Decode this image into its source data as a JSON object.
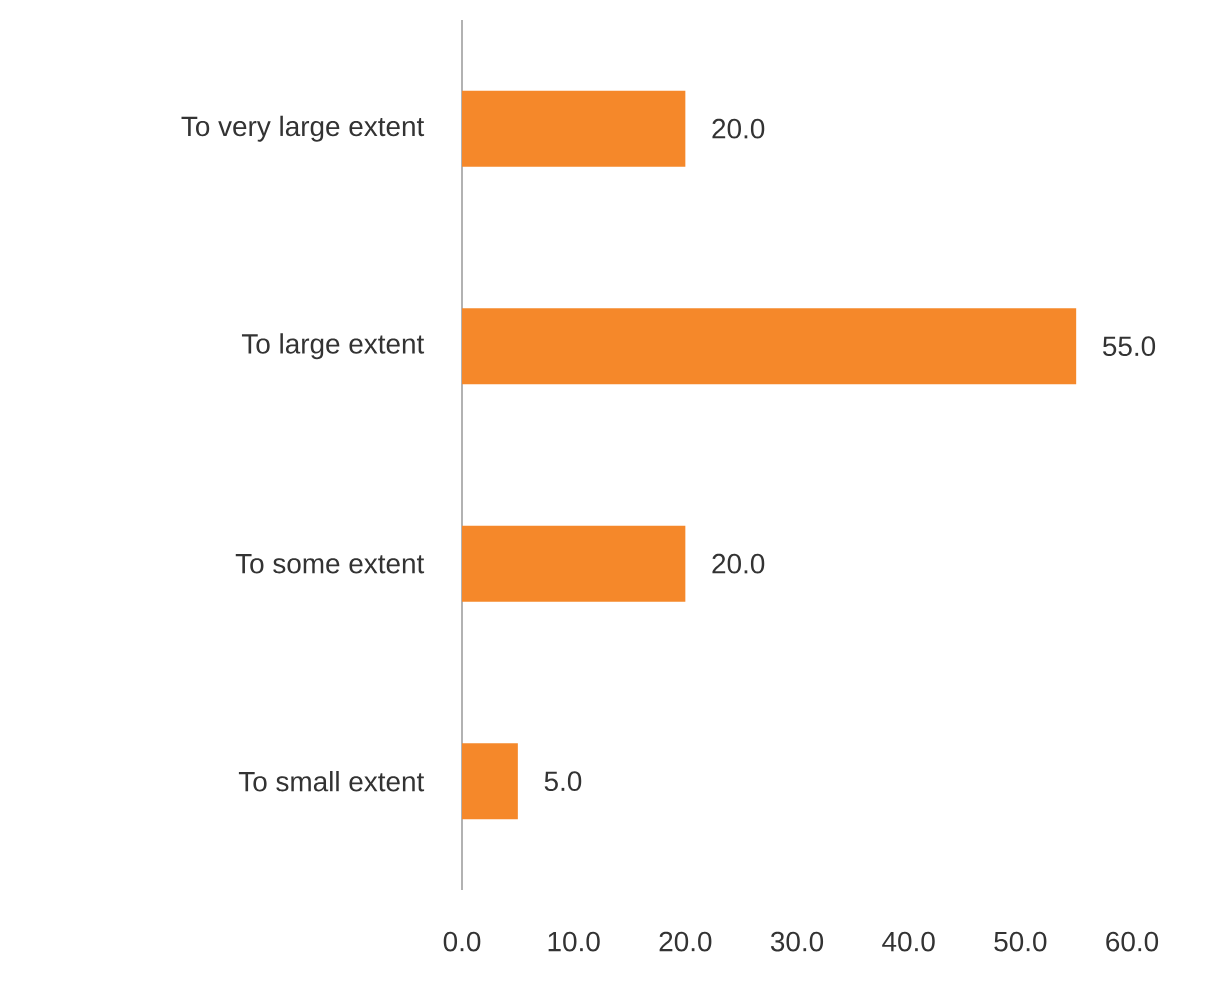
{
  "chart_data": {
    "type": "bar",
    "orientation": "horizontal",
    "categories": [
      "To very large extent",
      "To large extent",
      "To some extent",
      "To small extent"
    ],
    "values": [
      20,
      55,
      20,
      5
    ],
    "value_labels": [
      "20.0",
      "55.0",
      "20.0",
      "5.0"
    ],
    "color": "#f5882a",
    "xlim": [
      0,
      60
    ],
    "xticks": [
      {
        "value": 0,
        "label": "0.0"
      },
      {
        "value": 10,
        "label": "10.0"
      },
      {
        "value": 20,
        "label": "20.0"
      },
      {
        "value": 30,
        "label": "30.0"
      },
      {
        "value": 40,
        "label": "40.0"
      },
      {
        "value": 50,
        "label": "50.0"
      },
      {
        "value": 60,
        "label": "60.0"
      }
    ]
  }
}
